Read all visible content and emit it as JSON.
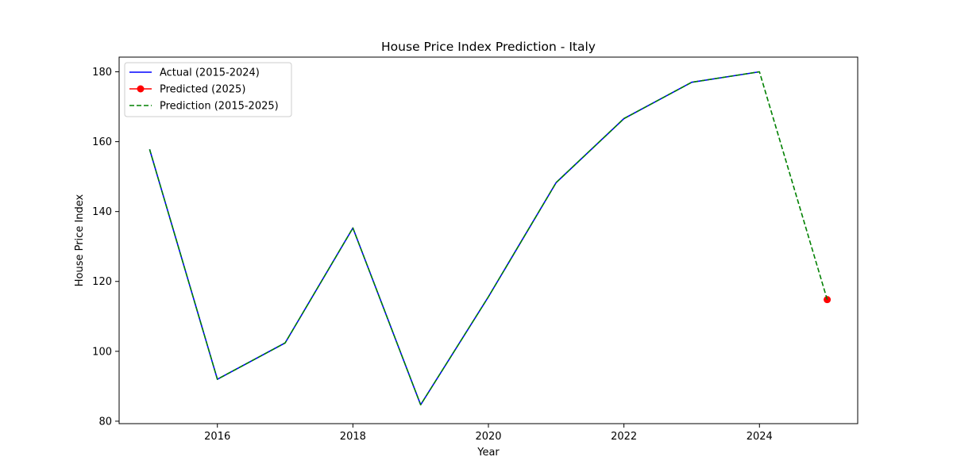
{
  "chart_data": {
    "type": "line",
    "title": "House Price Index Prediction - Italy",
    "xlabel": "Year",
    "ylabel": "House Price Index",
    "xlim": [
      2014.55,
      2025.45
    ],
    "ylim": [
      79.3,
      184.2
    ],
    "xticks": [
      2016,
      2018,
      2020,
      2022,
      2024
    ],
    "yticks": [
      80,
      100,
      120,
      140,
      160,
      180
    ],
    "grid": false,
    "legend_position": "upper left",
    "series": [
      {
        "name": "Actual (2015-2024)",
        "color": "#0000ff",
        "style": "solid",
        "x": [
          2015,
          2016,
          2017,
          2018,
          2019,
          2020,
          2021,
          2022,
          2023,
          2024
        ],
        "y": [
          157.8,
          92.0,
          102.4,
          135.3,
          84.7,
          115.6,
          148.3,
          166.6,
          177.0,
          180.0
        ]
      },
      {
        "name": "Predicted (2025)",
        "color": "#ff0000",
        "style": "solid",
        "marker": "circle",
        "x": [
          2025
        ],
        "y": [
          114.8
        ]
      },
      {
        "name": "Prediction (2015-2025)",
        "color": "#008000",
        "style": "dashed",
        "x": [
          2015,
          2016,
          2017,
          2018,
          2019,
          2020,
          2021,
          2022,
          2023,
          2024,
          2025
        ],
        "y": [
          157.8,
          92.0,
          102.4,
          135.3,
          84.7,
          115.6,
          148.3,
          166.6,
          177.0,
          180.0,
          114.8
        ]
      }
    ]
  }
}
